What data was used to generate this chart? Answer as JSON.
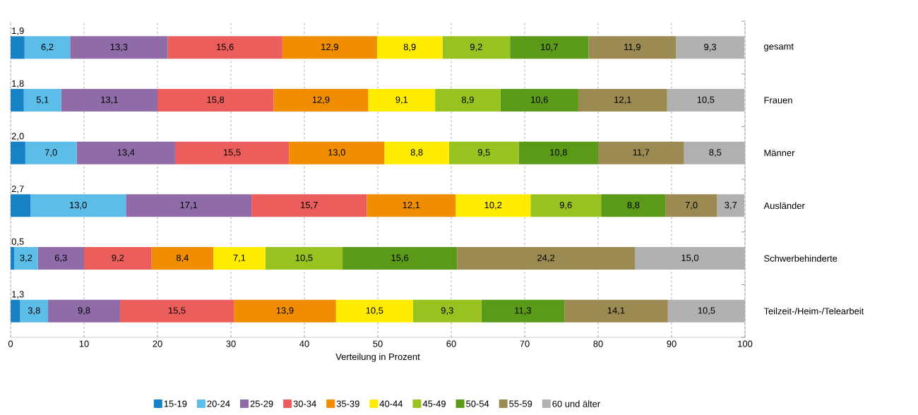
{
  "chart_data": {
    "type": "bar",
    "orientation": "horizontal",
    "stacked": true,
    "categories": [
      "gesamt",
      "Frauen",
      "Männer",
      "Ausländer",
      "Schwerbehinderte",
      "Teilzeit-/Heim-/Telearbeit"
    ],
    "xlabel": "Verteilung in Prozent",
    "xlim": [
      0,
      100
    ],
    "xticks": [
      0,
      10,
      20,
      30,
      40,
      50,
      60,
      70,
      80,
      90,
      100
    ],
    "grid": "x",
    "legend": "bottom",
    "series": [
      {
        "name": "15-19",
        "color": "#1681c4",
        "values": [
          1.9,
          1.8,
          2.0,
          2.7,
          0.5,
          1.3
        ],
        "value_labels": [
          "1,9",
          "1,8",
          "2,0",
          "2,7",
          "0,5",
          "1,3"
        ]
      },
      {
        "name": "20-24",
        "color": "#5cbde9",
        "values": [
          6.2,
          5.1,
          7.0,
          13.0,
          3.2,
          3.8
        ],
        "value_labels": [
          "6,2",
          "5,1",
          "7,0",
          "13,0",
          "3,2",
          "3,8"
        ]
      },
      {
        "name": "25-29",
        "color": "#8f6ba8",
        "values": [
          13.3,
          13.1,
          13.4,
          17.1,
          6.3,
          9.8
        ],
        "value_labels": [
          "13,3",
          "13,1",
          "13,4",
          "17,1",
          "6,3",
          "9,8"
        ]
      },
      {
        "name": "30-34",
        "color": "#ec5e5b",
        "values": [
          15.6,
          15.8,
          15.5,
          15.7,
          9.2,
          15.5
        ],
        "value_labels": [
          "15,6",
          "15,8",
          "15,5",
          "15,7",
          "9,2",
          "15,5"
        ]
      },
      {
        "name": "35-39",
        "color": "#f18d00",
        "values": [
          12.9,
          12.9,
          13.0,
          12.1,
          8.4,
          13.9
        ],
        "value_labels": [
          "12,9",
          "12,9",
          "13,0",
          "12,1",
          "8,4",
          "13,9"
        ]
      },
      {
        "name": "40-44",
        "color": "#ffec00",
        "values": [
          8.9,
          9.1,
          8.8,
          10.2,
          7.1,
          10.5
        ],
        "value_labels": [
          "8,9",
          "9,1",
          "8,8",
          "10,2",
          "7,1",
          "10,5"
        ]
      },
      {
        "name": "45-49",
        "color": "#97c21f",
        "values": [
          9.2,
          8.9,
          9.5,
          9.6,
          10.5,
          9.3
        ],
        "value_labels": [
          "9,2",
          "8,9",
          "9,5",
          "9,6",
          "10,5",
          "9,3"
        ]
      },
      {
        "name": "50-54",
        "color": "#5b9a18",
        "values": [
          10.7,
          10.6,
          10.8,
          8.8,
          15.6,
          11.3
        ],
        "value_labels": [
          "10,7",
          "10,6",
          "10,8",
          "8,8",
          "15,6",
          "11,3"
        ]
      },
      {
        "name": "55-59",
        "color": "#9b8b52",
        "values": [
          11.9,
          12.1,
          11.7,
          7.0,
          24.2,
          14.1
        ],
        "value_labels": [
          "11,9",
          "12,1",
          "11,7",
          "7,0",
          "24,2",
          "14,1"
        ]
      },
      {
        "name": "60 und älter",
        "color": "#b1b1b1",
        "values": [
          9.3,
          10.5,
          8.5,
          3.7,
          15.0,
          10.5
        ],
        "value_labels": [
          "9,3",
          "10,5",
          "8,5",
          "3,7",
          "15,0",
          "10,5"
        ]
      }
    ]
  }
}
